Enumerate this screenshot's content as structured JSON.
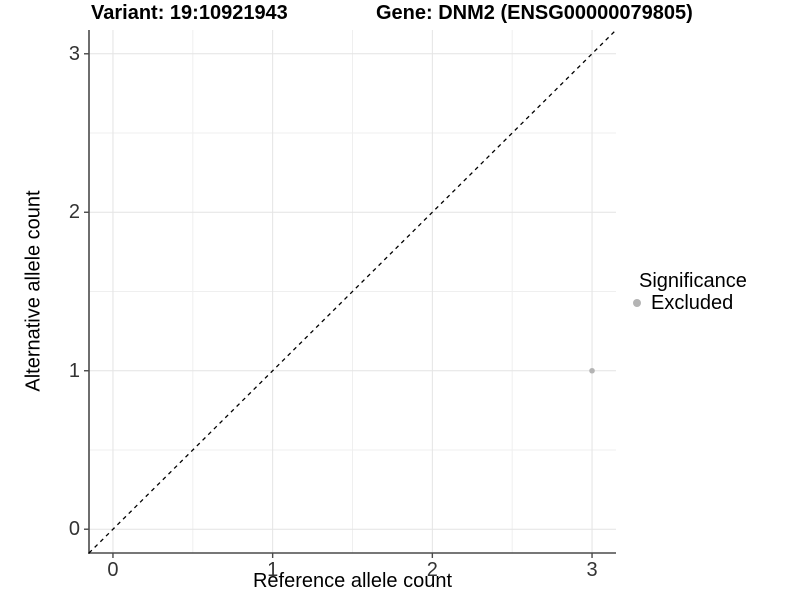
{
  "chart_data": {
    "type": "scatter",
    "title_left": "Variant: 19:10921943",
    "title_right": "Gene: DNM2 (ENSG00000079805)",
    "xlabel": "Reference allele count",
    "ylabel": "Alternative allele count",
    "xlim": [
      -0.15,
      3.15
    ],
    "ylim": [
      -0.15,
      3.15
    ],
    "x_ticks": [
      0,
      1,
      2,
      3
    ],
    "y_ticks": [
      0,
      1,
      2,
      3
    ],
    "x_minor_ticks": [
      0.5,
      1.5,
      2.5
    ],
    "y_minor_ticks": [
      0.5,
      1.5,
      2.5
    ],
    "grid": "major+minor",
    "identity_line": {
      "slope": 1,
      "intercept": 0,
      "style": "dashed",
      "color": "#000000"
    },
    "series": [
      {
        "name": "Excluded",
        "color": "#b4b4b4",
        "points": [
          [
            3,
            1
          ]
        ]
      }
    ],
    "legend": {
      "title": "Significance",
      "position": "right",
      "entries": [
        {
          "label": "Excluded",
          "color": "#b4b4b4"
        }
      ]
    },
    "colors": {
      "axis_line": "#4a4a4a",
      "tick_mark": "#4a4a4a",
      "grid_major": "#e4e4e4",
      "grid_minor": "#efefef",
      "tick_label": "#333333",
      "panel_background": "#ffffff"
    }
  }
}
